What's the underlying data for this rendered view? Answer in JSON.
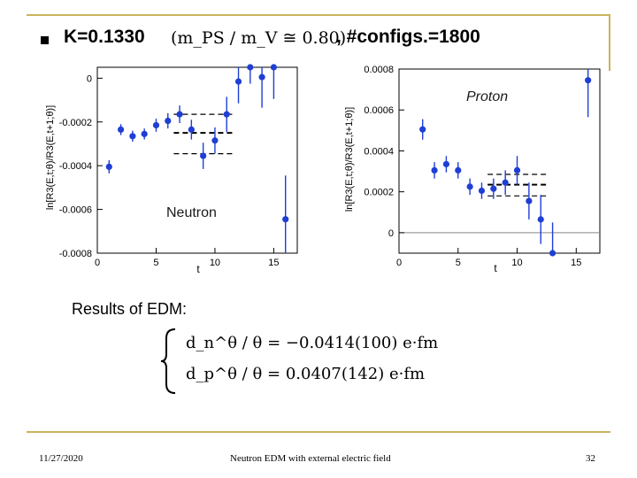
{
  "slide": {
    "title_k": "K=0.1330",
    "title_ratio": "(m_PS / m_V ≅ 0.80)",
    "title_configs": ", #configs.=1800",
    "results_label": "Results of EDM:",
    "eq_neutron": "d_n^θ / θ = −0.0414(100) e·fm",
    "eq_proton": "d_p^θ / θ = 0.0407(142) e·fm",
    "footer_date": "11/27/2020",
    "footer_center": "Neutron EDM with external electric field",
    "footer_page": "32"
  },
  "colors": {
    "accent_rule": "#c9b45c",
    "points": "#1f3fd4",
    "fit": "#000000"
  },
  "chart_data": [
    {
      "type": "scatter",
      "label": "Neutron",
      "ylabel": "ln[R3(E,t;θ)/R3(E,t+1;θ)]",
      "xlabel": "t",
      "xlim": [
        0,
        17
      ],
      "ylim": [
        -0.0008,
        5e-05
      ],
      "xticks": [
        0,
        5,
        10,
        15
      ],
      "yticks": [
        0,
        -0.0002,
        -0.0004,
        -0.0006,
        -0.0008
      ],
      "ytick_labels": [
        "0",
        "-0.0002",
        "-0.0004",
        "-0.0006",
        "-0.0008"
      ],
      "points": [
        {
          "t": 1,
          "y": -0.000405,
          "err": 3e-05
        },
        {
          "t": 2,
          "y": -0.000235,
          "err": 2.5e-05
        },
        {
          "t": 3,
          "y": -0.000265,
          "err": 2.5e-05
        },
        {
          "t": 4,
          "y": -0.000255,
          "err": 2.5e-05
        },
        {
          "t": 5,
          "y": -0.000215,
          "err": 3e-05
        },
        {
          "t": 6,
          "y": -0.000195,
          "err": 3.5e-05
        },
        {
          "t": 7,
          "y": -0.000165,
          "err": 4e-05
        },
        {
          "t": 8,
          "y": -0.000235,
          "err": 4.5e-05
        },
        {
          "t": 9,
          "y": -0.000355,
          "err": 6e-05
        },
        {
          "t": 10,
          "y": -0.000285,
          "err": 6e-05
        },
        {
          "t": 11,
          "y": -0.000165,
          "err": 8e-05
        },
        {
          "t": 12,
          "y": -1.5e-05,
          "err": 0.0001
        },
        {
          "t": 13,
          "y": 9.5e-05,
          "err": 0.00012
        },
        {
          "t": 14,
          "y": 5e-06,
          "err": 0.00014
        },
        {
          "t": 15,
          "y": 6.5e-05,
          "err": 0.00016
        },
        {
          "t": 16,
          "y": -0.000645,
          "err": 0.0002
        }
      ],
      "fit": {
        "t_start": 7,
        "t_end": 11,
        "value": -0.00025,
        "err_lower": -0.000345,
        "err_upper": -0.000165
      }
    },
    {
      "type": "scatter",
      "label": "Proton",
      "ylabel": "ln[R3(E,t;θ)/R3(E,t+1;θ)]",
      "xlabel": "t",
      "xlim": [
        0,
        17
      ],
      "ylim": [
        -0.0001,
        0.0008
      ],
      "xticks": [
        0,
        5,
        10,
        15
      ],
      "yticks": [
        0,
        0.0002,
        0.0004,
        0.0006,
        0.0008
      ],
      "ytick_labels": [
        "0",
        "0.0002",
        "0.0004",
        "0.0006",
        "0.0008"
      ],
      "points": [
        {
          "t": 2,
          "y": 0.000505,
          "err": 5e-05
        },
        {
          "t": 3,
          "y": 0.000305,
          "err": 4e-05
        },
        {
          "t": 4,
          "y": 0.000335,
          "err": 4e-05
        },
        {
          "t": 5,
          "y": 0.000305,
          "err": 4e-05
        },
        {
          "t": 6,
          "y": 0.000225,
          "err": 4e-05
        },
        {
          "t": 7,
          "y": 0.000205,
          "err": 4e-05
        },
        {
          "t": 8,
          "y": 0.000215,
          "err": 5e-05
        },
        {
          "t": 9,
          "y": 0.000245,
          "err": 6e-05
        },
        {
          "t": 10,
          "y": 0.000305,
          "err": 7e-05
        },
        {
          "t": 11,
          "y": 0.000155,
          "err": 9e-05
        },
        {
          "t": 12,
          "y": 6.5e-05,
          "err": 0.00012
        },
        {
          "t": 13,
          "y": -0.0001,
          "err": 0.00015
        },
        {
          "t": 16,
          "y": 0.000745,
          "err": 0.00018
        }
      ],
      "fit": {
        "t_start": 8,
        "t_end": 12,
        "value": 0.000235,
        "err_lower": 0.00018,
        "err_upper": 0.000285
      }
    }
  ]
}
